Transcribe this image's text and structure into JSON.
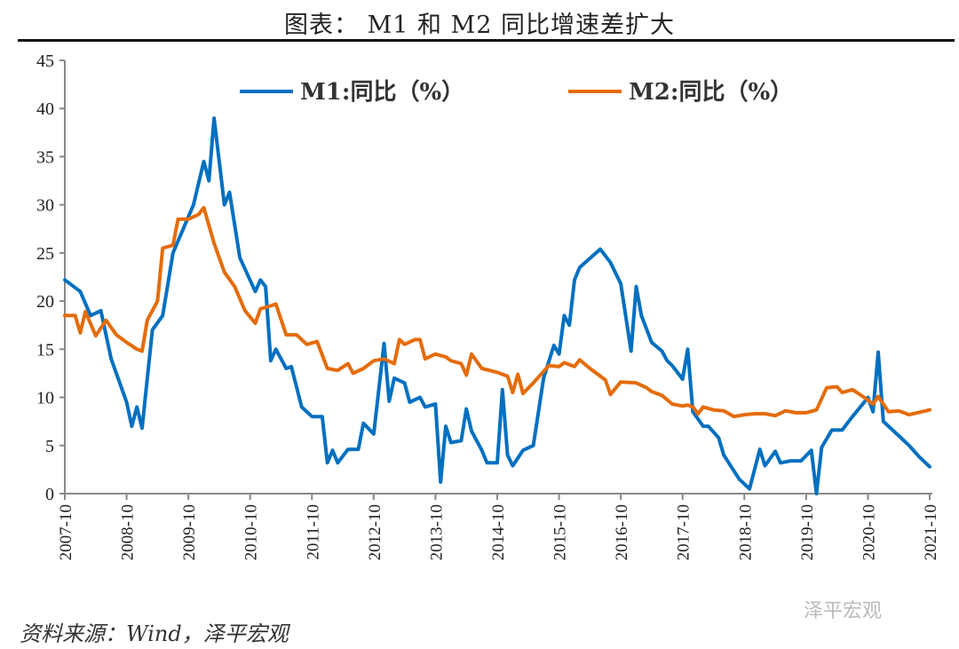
{
  "title": "图表： M1 和 M2 同比增速差扩大",
  "source": "资料来源：Wind，泽平宏观",
  "watermark": "泽平宏观",
  "chart_data": {
    "type": "line",
    "title": "图表： M1 和 M2 同比增速差扩大",
    "xlabel": "",
    "ylabel": "",
    "x_unit": "months since 2007-10",
    "ylim": [
      0,
      45
    ],
    "yticks": [
      0,
      5,
      10,
      15,
      20,
      25,
      30,
      35,
      40,
      45
    ],
    "xticks": [
      "2007-10",
      "2008-10",
      "2009-10",
      "2010-10",
      "2011-10",
      "2012-10",
      "2013-10",
      "2014-10",
      "2015-10",
      "2016-10",
      "2017-10",
      "2018-10",
      "2019-10",
      "2020-10",
      "2021-10"
    ],
    "legend_position": "top",
    "grid": false,
    "series": [
      {
        "name": "M1:同比（%）",
        "color": "#0070C0",
        "points": [
          [
            0,
            22.2
          ],
          [
            3,
            21
          ],
          [
            5,
            18.5
          ],
          [
            7,
            19
          ],
          [
            9,
            14
          ],
          [
            12,
            9.5
          ],
          [
            13,
            7
          ],
          [
            14,
            9
          ],
          [
            15,
            6.8
          ],
          [
            17,
            17
          ],
          [
            19,
            18.5
          ],
          [
            21,
            25
          ],
          [
            25,
            30
          ],
          [
            27,
            34.5
          ],
          [
            28,
            32.5
          ],
          [
            29,
            39
          ],
          [
            31,
            30
          ],
          [
            32,
            31.3
          ],
          [
            34,
            24.5
          ],
          [
            37,
            21
          ],
          [
            38,
            22.2
          ],
          [
            39,
            21.5
          ],
          [
            40,
            13.8
          ],
          [
            41,
            15
          ],
          [
            43,
            13
          ],
          [
            44,
            13.2
          ],
          [
            46,
            9
          ],
          [
            48,
            8
          ],
          [
            50,
            8
          ],
          [
            51,
            3.2
          ],
          [
            52,
            4.5
          ],
          [
            53,
            3.2
          ],
          [
            55,
            4.6
          ],
          [
            57,
            4.6
          ],
          [
            58,
            7.3
          ],
          [
            60,
            6.2
          ],
          [
            62,
            15.6
          ],
          [
            63,
            9.6
          ],
          [
            64,
            12
          ],
          [
            66,
            11.5
          ],
          [
            67,
            9.5
          ],
          [
            69,
            10
          ],
          [
            70,
            9
          ],
          [
            72,
            9.3
          ],
          [
            73,
            1.2
          ],
          [
            74,
            7
          ],
          [
            75,
            5.3
          ],
          [
            77,
            5.5
          ],
          [
            78,
            8.8
          ],
          [
            79,
            6.5
          ],
          [
            81,
            4.5
          ],
          [
            82,
            3.2
          ],
          [
            84,
            3.2
          ],
          [
            85,
            10.8
          ],
          [
            86,
            4
          ],
          [
            87,
            2.9
          ],
          [
            89,
            4.5
          ],
          [
            91,
            5
          ],
          [
            93,
            12
          ],
          [
            95,
            15.4
          ],
          [
            96,
            14.5
          ],
          [
            97,
            18.5
          ],
          [
            98,
            17.5
          ],
          [
            99,
            22.2
          ],
          [
            100,
            23.5
          ],
          [
            104,
            25.4
          ],
          [
            106,
            24
          ],
          [
            108,
            21.8
          ],
          [
            110,
            14.8
          ],
          [
            111,
            21.5
          ],
          [
            112,
            18.5
          ],
          [
            114,
            15.7
          ],
          [
            116,
            14.8
          ],
          [
            117,
            13.8
          ],
          [
            118,
            13.3
          ],
          [
            120,
            11.9
          ],
          [
            121,
            15
          ],
          [
            122,
            8.5
          ],
          [
            124,
            7
          ],
          [
            125,
            7
          ],
          [
            127,
            5.8
          ],
          [
            128,
            4
          ],
          [
            131,
            1.5
          ],
          [
            133,
            0.5
          ],
          [
            135,
            4.6
          ],
          [
            136,
            2.9
          ],
          [
            138,
            4.4
          ],
          [
            139,
            3.2
          ],
          [
            141,
            3.4
          ],
          [
            143,
            3.4
          ],
          [
            145,
            4.5
          ],
          [
            146,
            0
          ],
          [
            147,
            4.8
          ],
          [
            149,
            6.6
          ],
          [
            151,
            6.6
          ],
          [
            153,
            8
          ],
          [
            155,
            9.3
          ],
          [
            156,
            10
          ],
          [
            157,
            8.5
          ],
          [
            158,
            14.7
          ],
          [
            159,
            7.5
          ],
          [
            160,
            7
          ],
          [
            162,
            6
          ],
          [
            164,
            5
          ],
          [
            166,
            3.8
          ],
          [
            168,
            2.8
          ]
        ]
      },
      {
        "name": "M2:同比（%）",
        "color": "#E46C0A",
        "points": [
          [
            0,
            18.5
          ],
          [
            2,
            18.5
          ],
          [
            3,
            16.7
          ],
          [
            4,
            18.9
          ],
          [
            6,
            16.4
          ],
          [
            8,
            18
          ],
          [
            10,
            16.5
          ],
          [
            12,
            15.7
          ],
          [
            14,
            15
          ],
          [
            15,
            14.8
          ],
          [
            16,
            18
          ],
          [
            18,
            20
          ],
          [
            19,
            25.5
          ],
          [
            21,
            25.8
          ],
          [
            22,
            28.5
          ],
          [
            24,
            28.5
          ],
          [
            26,
            29
          ],
          [
            27,
            29.7
          ],
          [
            29,
            26
          ],
          [
            31,
            23
          ],
          [
            33,
            21.5
          ],
          [
            35,
            19
          ],
          [
            37,
            17.7
          ],
          [
            38,
            19.2
          ],
          [
            40,
            19.5
          ],
          [
            41,
            19.7
          ],
          [
            43,
            16.5
          ],
          [
            45,
            16.5
          ],
          [
            47,
            15.5
          ],
          [
            49,
            15.8
          ],
          [
            51,
            13
          ],
          [
            53,
            12.8
          ],
          [
            55,
            13.5
          ],
          [
            56,
            12.5
          ],
          [
            58,
            13
          ],
          [
            60,
            13.8
          ],
          [
            62,
            14
          ],
          [
            64,
            13.5
          ],
          [
            65,
            16
          ],
          [
            66,
            15.5
          ],
          [
            68,
            16
          ],
          [
            69,
            16
          ],
          [
            70,
            14
          ],
          [
            72,
            14.5
          ],
          [
            74,
            14.2
          ],
          [
            75,
            13.8
          ],
          [
            77,
            13.5
          ],
          [
            78,
            12.3
          ],
          [
            79,
            14.5
          ],
          [
            81,
            13
          ],
          [
            84,
            12.6
          ],
          [
            86,
            12.2
          ],
          [
            87,
            10.5
          ],
          [
            88,
            12.4
          ],
          [
            89,
            10.4
          ],
          [
            91,
            11.5
          ],
          [
            94,
            13.3
          ],
          [
            96,
            13.2
          ],
          [
            97,
            13.6
          ],
          [
            99,
            13.2
          ],
          [
            100,
            13.9
          ],
          [
            102,
            13
          ],
          [
            105,
            11.8
          ],
          [
            106,
            10.3
          ],
          [
            108,
            11.6
          ],
          [
            111,
            11.5
          ],
          [
            113,
            11
          ],
          [
            114,
            10.6
          ],
          [
            116,
            10.2
          ],
          [
            118,
            9.3
          ],
          [
            120,
            9.1
          ],
          [
            121,
            9.2
          ],
          [
            122,
            9
          ],
          [
            123,
            8.3
          ],
          [
            124,
            9
          ],
          [
            126,
            8.7
          ],
          [
            128,
            8.6
          ],
          [
            130,
            8
          ],
          [
            132,
            8.2
          ],
          [
            134,
            8.3
          ],
          [
            136,
            8.3
          ],
          [
            138,
            8.1
          ],
          [
            140,
            8.6
          ],
          [
            142,
            8.4
          ],
          [
            144,
            8.4
          ],
          [
            146,
            8.7
          ],
          [
            148,
            11
          ],
          [
            150,
            11.1
          ],
          [
            151,
            10.5
          ],
          [
            153,
            10.8
          ],
          [
            155,
            10.1
          ],
          [
            157,
            9.3
          ],
          [
            158,
            10.1
          ],
          [
            160,
            8.5
          ],
          [
            162,
            8.6
          ],
          [
            164,
            8.2
          ],
          [
            168,
            8.7
          ]
        ]
      }
    ]
  }
}
